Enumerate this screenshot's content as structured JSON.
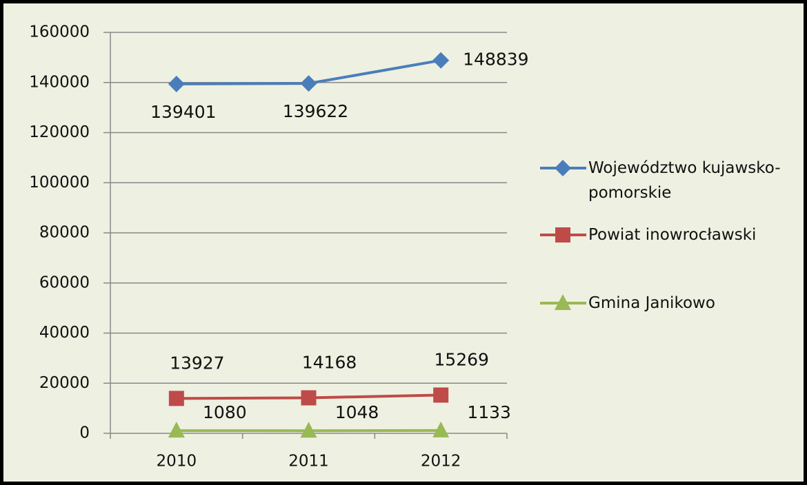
{
  "chart_data": {
    "type": "line",
    "categories": [
      "2010",
      "2011",
      "2012"
    ],
    "series": [
      {
        "name": "Województwo kujawsko-pomorskie",
        "color": "#4a7ebb",
        "values": [
          139401,
          139622,
          148839
        ]
      },
      {
        "name": "Powiat inowrocławski",
        "color": "#be4b48",
        "values": [
          13927,
          14168,
          15269
        ]
      },
      {
        "name": "Gmina Janikowo",
        "color": "#98b954",
        "values": [
          1080,
          1048,
          1133
        ]
      }
    ],
    "ylim": [
      0,
      160000
    ],
    "yticks": [
      0,
      20000,
      40000,
      60000,
      80000,
      100000,
      120000,
      140000,
      160000
    ],
    "grid": true,
    "legend": "right"
  }
}
